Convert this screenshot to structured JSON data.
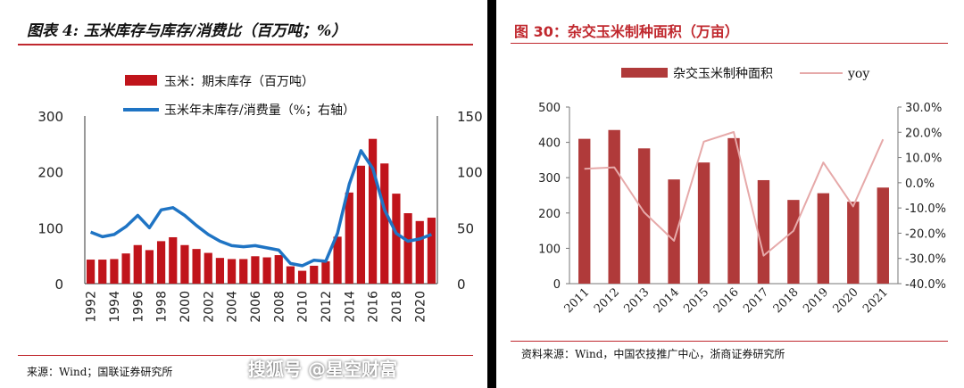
{
  "left": {
    "title": "图表 4: 玉米库存与库存/消费比（百万吨；%）",
    "source": "来源：Wind；国联证券研究所",
    "chart_data": {
      "type": "bar",
      "x": [
        1992,
        1993,
        1994,
        1995,
        1996,
        1997,
        1998,
        1999,
        2000,
        2001,
        2002,
        2003,
        2004,
        2005,
        2006,
        2007,
        2008,
        2009,
        2010,
        2011,
        2012,
        2013,
        2014,
        2015,
        2016,
        2017,
        2018,
        2019,
        2020,
        2021
      ],
      "series": [
        {
          "name": "玉米：期末库存（百万吨）",
          "type": "bar",
          "axis": "left",
          "color": "#c0141b",
          "values": [
            43,
            43,
            44,
            54,
            69,
            60,
            76,
            83,
            69,
            62,
            55,
            46,
            44,
            44,
            49,
            47,
            51,
            31,
            23,
            32,
            40,
            84,
            163,
            211,
            259,
            215,
            161,
            126,
            112,
            118
          ]
        },
        {
          "name": "玉米年末库存/消费量（%；右轴）",
          "type": "line",
          "axis": "right",
          "color": "#1f74c4",
          "values": [
            46,
            42,
            44,
            51,
            61,
            50,
            66,
            68,
            61,
            52,
            44,
            38,
            34,
            33,
            34,
            32,
            30,
            18,
            16,
            21,
            20,
            45,
            89,
            119,
            103,
            66,
            45,
            38,
            40,
            44
          ]
        }
      ],
      "xticks": [
        "1992",
        "1994",
        "1996",
        "1998",
        "2000",
        "2002",
        "2004",
        "2006",
        "2008",
        "2010",
        "2012",
        "2014",
        "2016",
        "2018",
        "2020"
      ],
      "ylim_left": [
        0,
        300
      ],
      "yticks_left": [
        "0",
        "100",
        "200",
        "300"
      ],
      "ylim_right": [
        0,
        150
      ],
      "yticks_right": [
        "0",
        "50",
        "100",
        "150"
      ],
      "legend": "top-center",
      "grid": false
    }
  },
  "right": {
    "title": "图 30：杂交玉米制种面积（万亩）",
    "source": "资料来源：Wind，中国农技推广中心，浙商证券研究所",
    "chart_data": {
      "type": "bar",
      "categories": [
        "2011",
        "2012",
        "2013",
        "2014",
        "2015",
        "2016",
        "2017",
        "2018",
        "2019",
        "2020",
        "2021"
      ],
      "series": [
        {
          "name": "杂交玉米制种面积",
          "type": "bar",
          "axis": "left",
          "color": "#b03a3a",
          "values": [
            410,
            435,
            383,
            295,
            343,
            412,
            293,
            237,
            256,
            232,
            272
          ]
        },
        {
          "name": "yoy",
          "type": "line",
          "axis": "right",
          "color": "#e6a9a9",
          "values": [
            5.5,
            6.1,
            -11.7,
            -23.0,
            16.3,
            20.1,
            -28.9,
            -19.1,
            8.0,
            -9.4,
            17.2
          ]
        }
      ],
      "ylim_left": [
        0,
        500
      ],
      "yticks_left": [
        "0",
        "100",
        "200",
        "300",
        "400",
        "500"
      ],
      "ylim_right": [
        -40,
        30
      ],
      "yticks_right": [
        "30.0%",
        "20.0%",
        "10.0%",
        "0.0%",
        "-10.0%",
        "-20.0%",
        "-30.0%",
        "-40.0%"
      ],
      "legend": "top-center",
      "grid": false
    }
  },
  "watermark": "搜狐号 @星空财富"
}
